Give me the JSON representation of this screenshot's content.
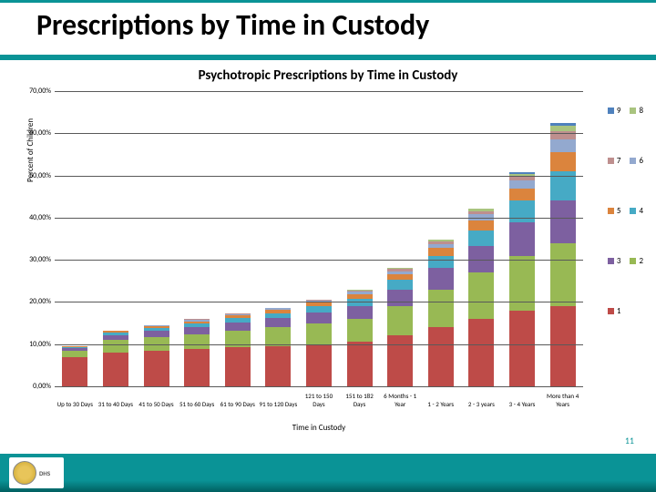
{
  "slide": {
    "title": "Prescriptions by Time in Custody",
    "page_number": "11",
    "logo_text": "DHS"
  },
  "chart": {
    "type": "stacked-bar",
    "title": "Psychotropic Prescriptions by Time in Custody",
    "ylabel": "Percent of Children",
    "xlabel": "Time in Custody",
    "ylim_max": 70,
    "yticks": [
      {
        "v": 0,
        "label": "0,00%"
      },
      {
        "v": 10,
        "label": "10,00%"
      },
      {
        "v": 20,
        "label": "20,00%"
      },
      {
        "v": 30,
        "label": "30,00%"
      },
      {
        "v": 40,
        "label": "40,00%"
      },
      {
        "v": 50,
        "label": "50,00%"
      },
      {
        "v": 60,
        "label": "60,00%"
      },
      {
        "v": 70,
        "label": "70,00%"
      }
    ],
    "background_color": "#ffffff",
    "grid_color": "#595959",
    "series_colors": {
      "1": "#be4b48",
      "2": "#98b954",
      "3": "#7d60a0",
      "4": "#46aac5",
      "5": "#db843d",
      "6": "#93a9cf",
      "7": "#be8f8e",
      "8": "#a9c47f",
      "9": "#4f81bd"
    },
    "legend_rows": [
      [
        "9",
        "8"
      ],
      [
        "7",
        "6"
      ],
      [
        "5",
        "4"
      ],
      [
        "3",
        "2"
      ],
      [
        "1",
        null
      ]
    ],
    "categories": [
      {
        "label": "Up to 30 Days",
        "stack": {
          "1": 7.0,
          "2": 1.5,
          "3": 0.5,
          "4": 0.3,
          "5": 0.2
        }
      },
      {
        "label": "31 to 40 Days",
        "stack": {
          "1": 8.0,
          "2": 3.0,
          "3": 1.2,
          "4": 0.6,
          "5": 0.3,
          "6": 0.2
        }
      },
      {
        "label": "41 to 50 Days",
        "stack": {
          "1": 8.5,
          "2": 3.2,
          "3": 1.4,
          "4": 0.7,
          "5": 0.4,
          "6": 0.3,
          "7": 0.1
        }
      },
      {
        "label": "51 to 60 Days",
        "stack": {
          "1": 8.8,
          "2": 3.6,
          "3": 1.6,
          "4": 0.9,
          "5": 0.5,
          "6": 0.3,
          "7": 0.2
        }
      },
      {
        "label": "61 to 90 Days",
        "stack": {
          "1": 9.2,
          "2": 4.0,
          "3": 2.0,
          "4": 1.0,
          "5": 0.6,
          "6": 0.3,
          "7": 0.2
        }
      },
      {
        "label": "91 to 120 Days",
        "stack": {
          "1": 9.6,
          "2": 4.4,
          "3": 2.2,
          "4": 1.2,
          "5": 0.7,
          "6": 0.4,
          "7": 0.2
        }
      },
      {
        "label": "121 to 150 Days",
        "stack": {
          "1": 10.0,
          "2": 5.0,
          "3": 2.6,
          "4": 1.4,
          "5": 0.8,
          "6": 0.5,
          "7": 0.3
        }
      },
      {
        "label": "151 to 182 Days",
        "stack": {
          "1": 10.5,
          "2": 5.6,
          "3": 3.0,
          "4": 1.7,
          "5": 1.0,
          "6": 0.6,
          "7": 0.3,
          "8": 0.2
        }
      },
      {
        "label": "6 Months - 1 Year",
        "stack": {
          "1": 12.0,
          "2": 7.0,
          "3": 4.0,
          "4": 2.2,
          "5": 1.3,
          "6": 0.8,
          "7": 0.5,
          "8": 0.3
        }
      },
      {
        "label": "1 - 2 Years",
        "stack": {
          "1": 14.0,
          "2": 9.0,
          "3": 5.0,
          "4": 3.0,
          "5": 1.8,
          "6": 1.0,
          "7": 0.6,
          "8": 0.4
        }
      },
      {
        "label": "2 - 3 years",
        "stack": {
          "1": 16.0,
          "2": 11.0,
          "3": 6.2,
          "4": 3.8,
          "5": 2.4,
          "6": 1.4,
          "7": 0.8,
          "8": 0.5
        }
      },
      {
        "label": "3 - 4 Years",
        "stack": {
          "1": 18.0,
          "2": 13.0,
          "3": 8.0,
          "4": 5.0,
          "5": 3.0,
          "6": 1.8,
          "7": 1.0,
          "8": 0.6,
          "9": 0.3
        }
      },
      {
        "label": "More than 4 Years",
        "stack": {
          "1": 19.0,
          "2": 15.0,
          "3": 10.0,
          "4": 7.0,
          "5": 4.5,
          "6": 3.0,
          "7": 2.0,
          "8": 1.2,
          "9": 0.8
        }
      }
    ]
  }
}
